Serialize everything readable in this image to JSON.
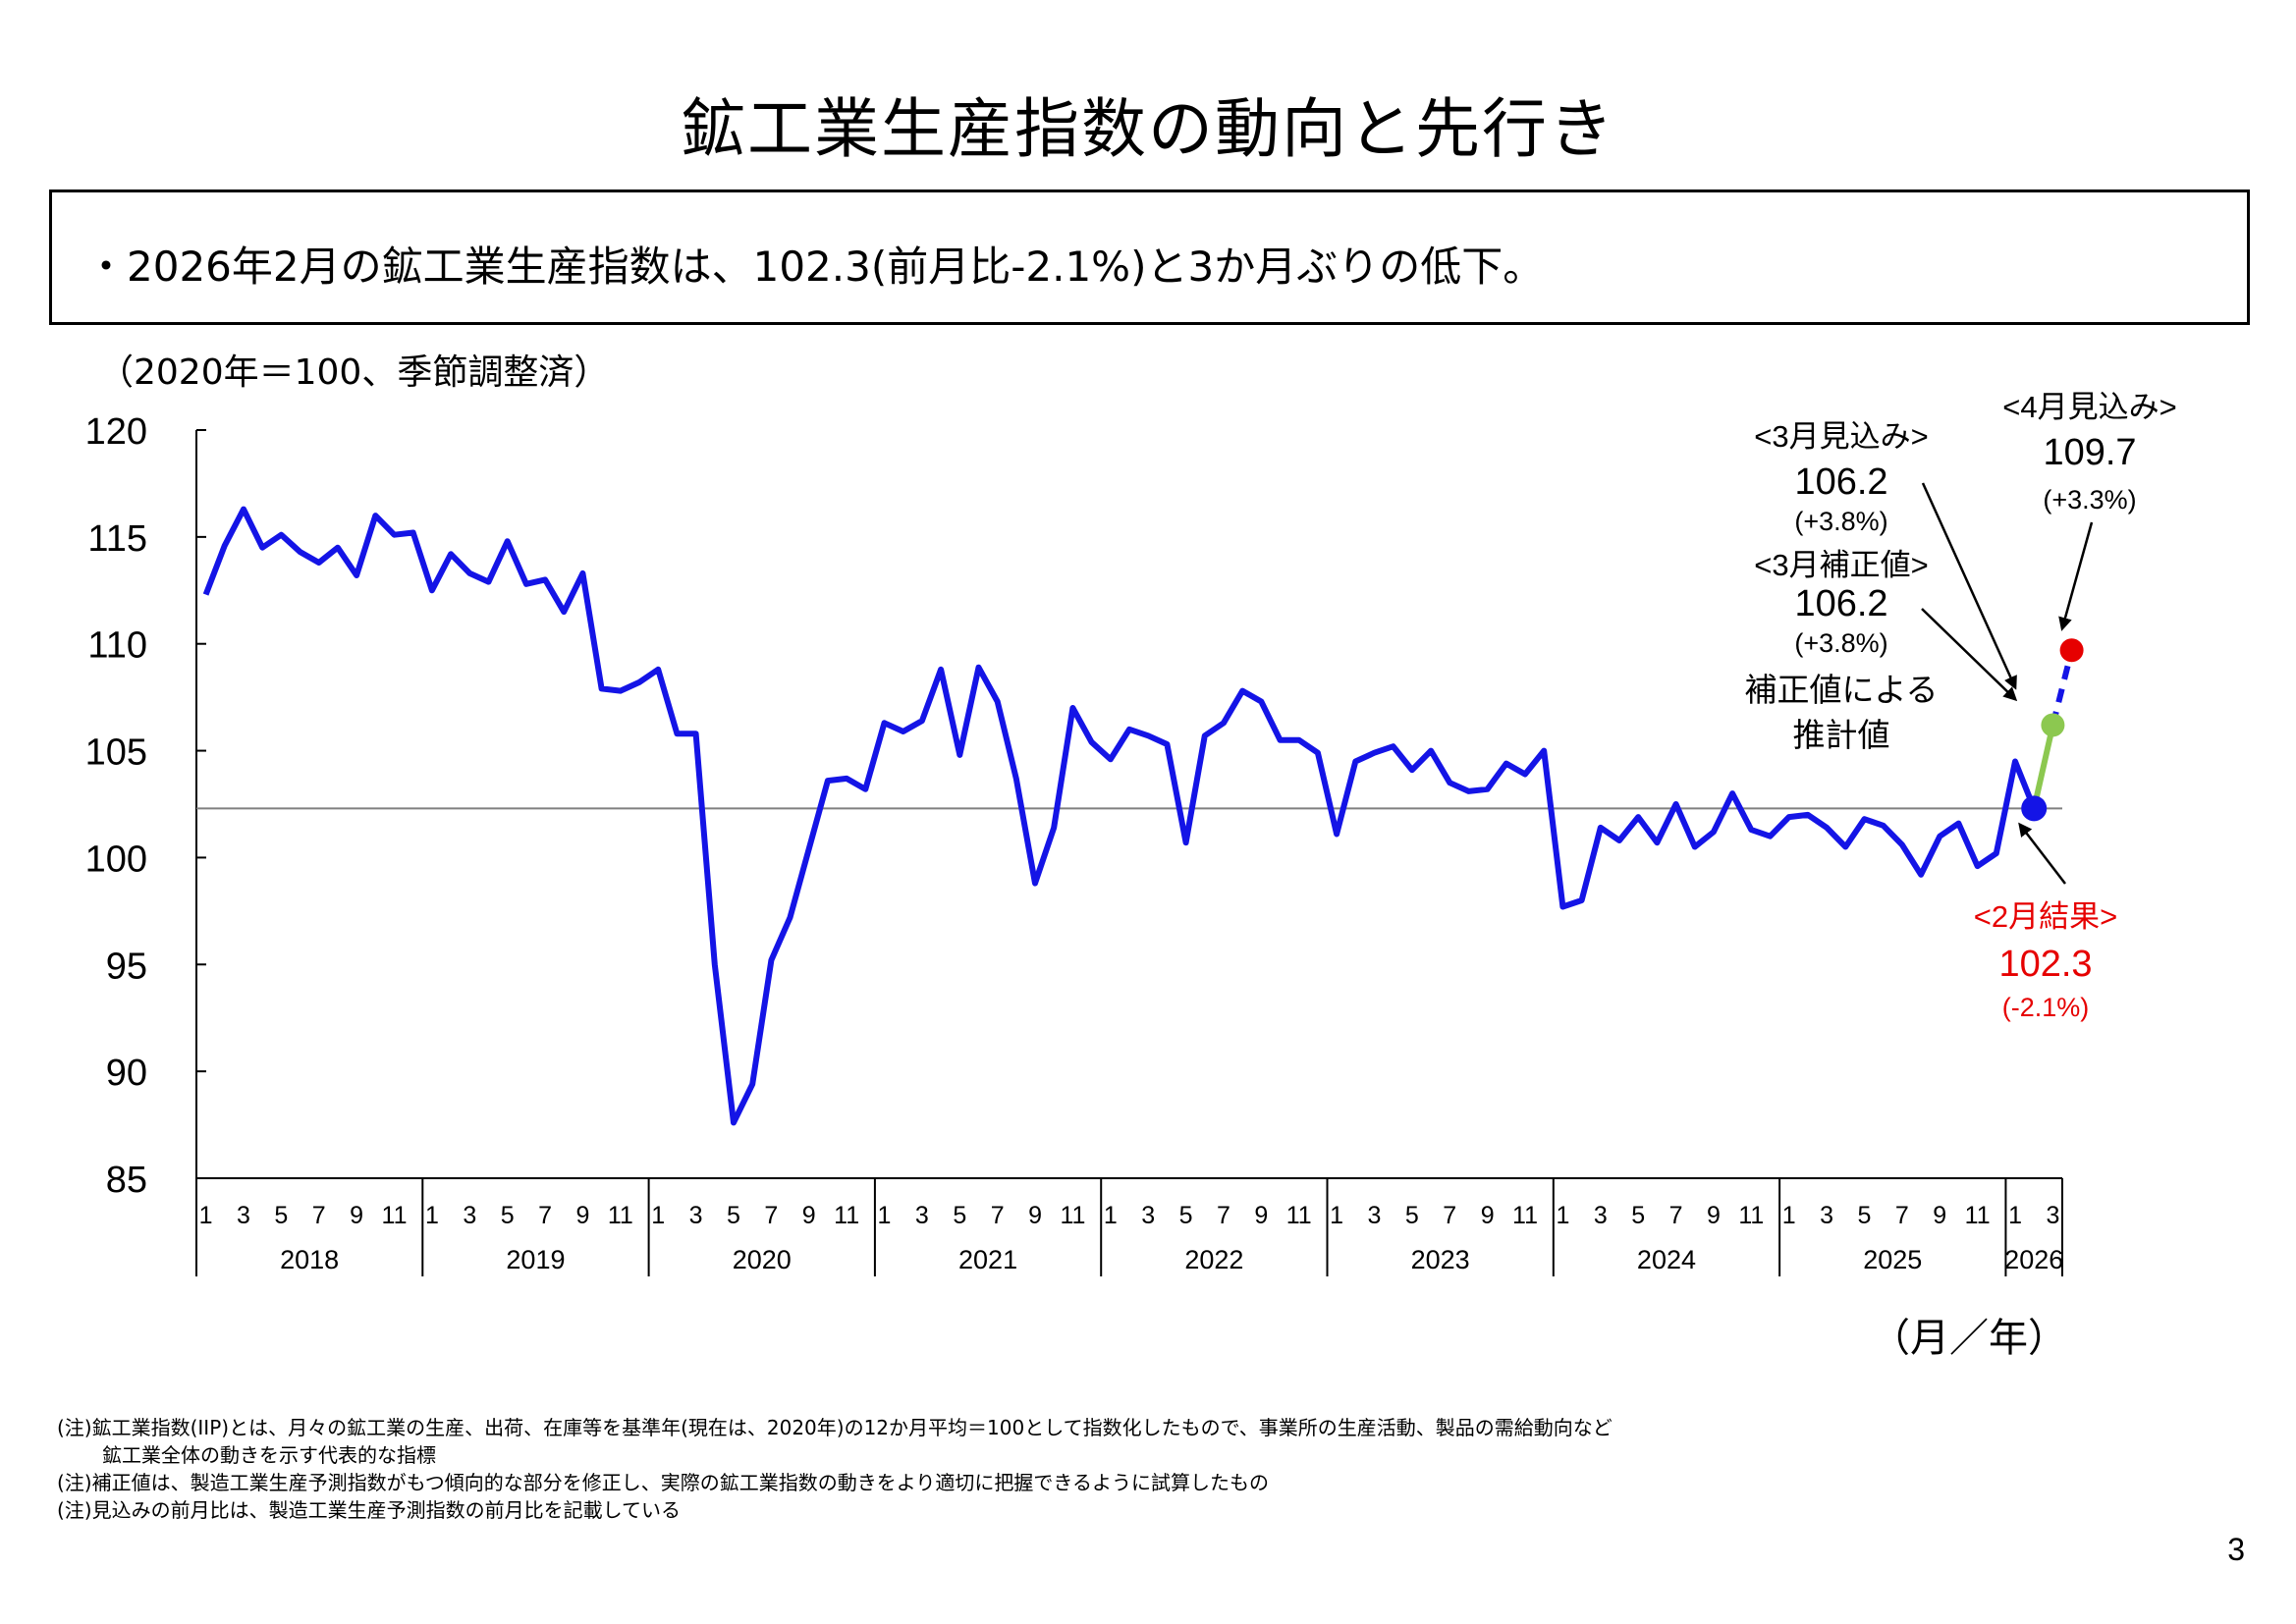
{
  "title": "鉱工業生産指数の動向と先行き",
  "summary": "・2026年2月の鉱工業生産指数は、102.3(前月比-2.1%)と3か月ぶりの低下。",
  "unit_label": "（2020年＝100、季節調整済）",
  "axis_unit": "（月／年）",
  "notes": [
    "(注)鉱工業指数(IIP)とは、月々の鉱工業の生産、出荷、在庫等を基準年(現在は、2020年)の12か月平均＝100として指数化したもので、事業所の生産活動、製品の需給動向など",
    "鉱工業全体の動きを示す代表的な指標",
    "(注)補正値は、製造工業生産予測指数がもつ傾向的な部分を修正し、実際の鉱工業指数の動きをより適切に把握できるように試算したもの",
    "(注)見込みの前月比は、製造工業生産予測指数の前月比を記載している"
  ],
  "page_number": "3",
  "colors": {
    "series": "#1414e6",
    "result": "#1414e6",
    "correction": "#8cc850",
    "forecast": "#e60000",
    "result_label": "#e60000",
    "reference_line": "#808080"
  },
  "annotations": {
    "april_forecast": {
      "heading": "<4月見込み>",
      "value": "109.7",
      "change": "(+3.3%)"
    },
    "march_forecast": {
      "heading": "<3月見込み>",
      "value": "106.2",
      "change": "(+3.8%)"
    },
    "march_corrected": {
      "heading": "<3月補正値>",
      "value": "106.2",
      "change": "(+3.8%)",
      "note_line1": "補正値による",
      "note_line2": "推計値"
    },
    "feb_result": {
      "heading": "<2月結果>",
      "value": "102.3",
      "change": "(-2.1%)"
    }
  },
  "chart_data": {
    "type": "line",
    "title": "",
    "ylabel": "（2020年＝100、季節調整済）",
    "xlabel": "（月／年）",
    "ylim": [
      85,
      120
    ],
    "yticks": [
      85,
      90,
      95,
      100,
      105,
      110,
      115,
      120
    ],
    "grid": false,
    "year_groups": [
      {
        "year": "2018",
        "months": 12
      },
      {
        "year": "2019",
        "months": 12
      },
      {
        "year": "2020",
        "months": 12
      },
      {
        "year": "2021",
        "months": 12
      },
      {
        "year": "2022",
        "months": 12
      },
      {
        "year": "2023",
        "months": 12
      },
      {
        "year": "2024",
        "months": 12
      },
      {
        "year": "2025",
        "months": 12
      },
      {
        "year": "2026",
        "months": 2
      }
    ],
    "month_tick_labels": [
      "1",
      "3",
      "5",
      "7",
      "9",
      "11"
    ],
    "series": [
      {
        "name": "鉱工業生産指数",
        "start": "2018-01",
        "values": [
          112.3,
          114.6,
          116.3,
          114.5,
          115.1,
          114.3,
          113.8,
          114.5,
          113.2,
          116.0,
          115.1,
          115.2,
          112.5,
          114.2,
          113.3,
          112.9,
          114.8,
          112.8,
          113.0,
          111.5,
          113.3,
          107.9,
          107.8,
          108.2,
          108.8,
          105.8,
          105.8,
          95.0,
          87.6,
          89.4,
          95.2,
          97.2,
          100.4,
          103.6,
          103.7,
          103.2,
          106.3,
          105.9,
          106.4,
          108.8,
          104.8,
          108.9,
          107.3,
          103.7,
          98.8,
          101.4,
          107.0,
          105.4,
          104.6,
          106.0,
          105.7,
          105.3,
          100.7,
          105.7,
          106.3,
          107.8,
          107.3,
          105.5,
          105.5,
          104.9,
          101.1,
          104.5,
          104.9,
          105.2,
          104.1,
          105.0,
          103.5,
          103.1,
          103.2,
          104.4,
          103.9,
          105.0,
          97.7,
          98.0,
          101.4,
          100.8,
          101.9,
          100.7,
          102.5,
          100.5,
          101.2,
          103.0,
          101.3,
          101.0,
          101.9,
          102.0,
          101.4,
          100.5,
          101.8,
          101.5,
          100.6,
          99.2,
          101.0,
          101.6,
          99.6,
          100.2,
          104.5,
          102.3
        ]
      },
      {
        "name": "2月結果",
        "month": "2026-02",
        "value": 102.3,
        "change": "-2.1%"
      },
      {
        "name": "3月補正値",
        "month": "2026-03",
        "value": 106.2,
        "change": "+3.8%"
      },
      {
        "name": "3月見込み",
        "month": "2026-03",
        "value": 106.2,
        "change": "+3.8%"
      },
      {
        "name": "4月見込み",
        "month": "2026-04",
        "value": 109.7,
        "change": "+3.3%"
      }
    ],
    "reference_line": 102.3
  }
}
